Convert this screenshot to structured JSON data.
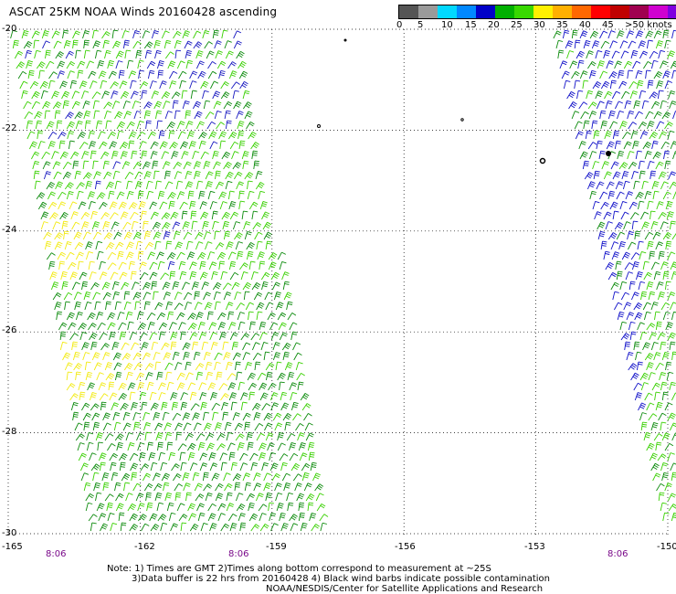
{
  "title": "ASCAT 25KM NOAA Winds 20160428 ascending",
  "color_scale": {
    "labels": [
      "0",
      "5",
      "10",
      "15",
      "20",
      "25",
      "30",
      "35",
      "40",
      "45",
      ">50 knots"
    ],
    "colors": [
      "#555555",
      "#9a9a9a",
      "#00d8ff",
      "#0088ff",
      "#0000c8",
      "#00b000",
      "#38d800",
      "#fff000",
      "#ffb000",
      "#ff6800",
      "#ff0000",
      "#c00000",
      "#a00050",
      "#d000d0",
      "#8000e0"
    ]
  },
  "axes": {
    "lat_labels": [
      "-20",
      "-22",
      "-24",
      "-26",
      "-28",
      "-30"
    ],
    "lon_labels": [
      "-165",
      "-162",
      "-159",
      "-156",
      "-153",
      "-150"
    ]
  },
  "time_labels": [
    "8:06",
    "8:06",
    "8:06"
  ],
  "notes": [
    "Note: 1) Times are GMT 2)Times along bottom correspond to measurement at ~25S",
    "3)Data buffer is 22 hrs from 20160428 4) Black wind barbs indicate possible contamination",
    "NOAA/NESDIS/Center for Satellite Applications and Research"
  ],
  "chart_data": {
    "type": "wind-barb-map",
    "lat_range": [
      -30,
      -20
    ],
    "lon_range": [
      -165,
      -150
    ],
    "grid": true,
    "swaths": [
      {
        "name": "",
        "dominant_colors": [
          "#38d800",
          "#00b000",
          "#fff000",
          "#0000c8"
        ]
      },
      {
        "name": "",
        "dominant_colors": [
          "#0000c8",
          "#38d800",
          "#00b000"
        ]
      }
    ]
  }
}
